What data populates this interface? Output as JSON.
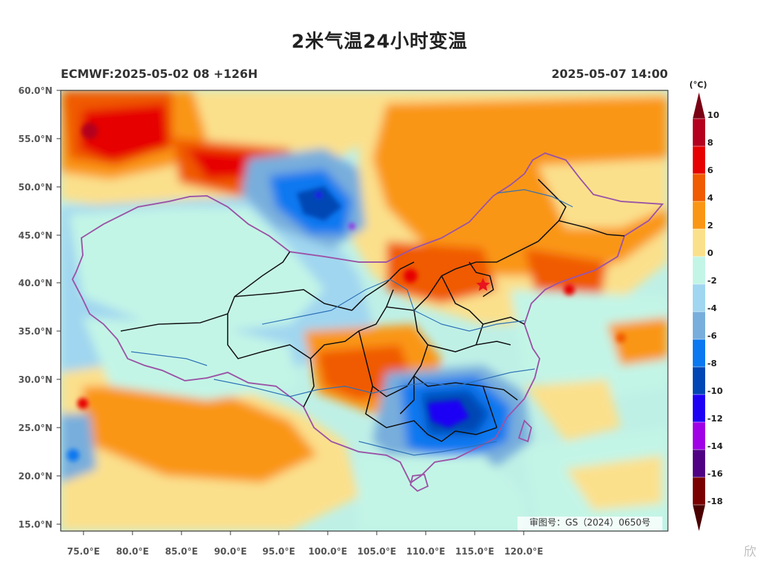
{
  "title": "2米气温24小时变温",
  "subtitle_left": "ECMWF:2025-05-02 08 +126H",
  "subtitle_right": "2025-05-07 14:00",
  "colorbar": {
    "unit": "(°C)",
    "levels": [
      "10",
      "8",
      "6",
      "4",
      "2",
      "0",
      "-2",
      "-4",
      "-6",
      "-8",
      "-10",
      "-12",
      "-14",
      "-16",
      "-18"
    ],
    "colors": [
      "#b4001e",
      "#e60000",
      "#f05a00",
      "#fa9614",
      "#fbe08c",
      "#c3f5e6",
      "#a0d6f0",
      "#78aedc",
      "#0a78f0",
      "#0046b4",
      "#1e00f5",
      "#a000e6",
      "#500082",
      "#7a0000"
    ],
    "top_cap_color": "#7a0014",
    "bottom_cap_color": "#4b0000"
  },
  "axes": {
    "lat_labels": [
      "60.0°N",
      "55.0°N",
      "50.0°N",
      "45.0°N",
      "40.0°N",
      "35.0°N",
      "30.0°N",
      "25.0°N",
      "20.0°N",
      "15.0°N"
    ],
    "lon_labels": [
      "75.0°E",
      "80.0°E",
      "85.0°E",
      "90.0°E",
      "95.0°E",
      "100.0°E",
      "105.0°E",
      "110.0°E",
      "115.0°E",
      "120.0°E"
    ]
  },
  "map_style": {
    "background_color": "#bff0e6",
    "national_border_color": "#9b55a6",
    "province_border_color": "#111111",
    "river_color": "#2b6fb5",
    "marker_color": "#e8141e"
  },
  "approval_text": "审图号：GS（2024）0650号",
  "watermark_text": "欣"
}
